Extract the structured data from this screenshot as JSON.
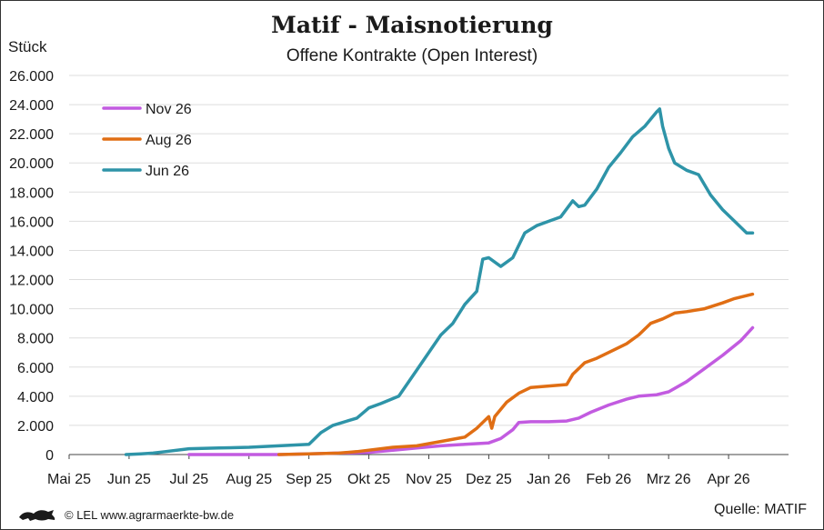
{
  "chart_data": {
    "type": "line",
    "title": "Matif - Maisnotierung",
    "subtitle": "Offene Kontrakte (Open Interest)",
    "ylabel": "Stück",
    "xlabel": "",
    "ylim": [
      0,
      26000
    ],
    "yticks": [
      0,
      2000,
      4000,
      6000,
      8000,
      10000,
      12000,
      14000,
      16000,
      18000,
      20000,
      22000,
      24000,
      26000
    ],
    "ytick_labels": [
      "0",
      "2.000",
      "4.000",
      "6.000",
      "8.000",
      "10.000",
      "12.000",
      "14.000",
      "16.000",
      "18.000",
      "20.000",
      "22.000",
      "24.000",
      "26.000"
    ],
    "xticks": [
      "Mai 25",
      "Jun 25",
      "Jul 25",
      "Aug 25",
      "Sep 25",
      "Okt 25",
      "Nov 25",
      "Dez 25",
      "Jan 26",
      "Feb 26",
      "Mrz 26",
      "Apr 26"
    ],
    "xlim": [
      0,
      12
    ],
    "x_unit": "months since Mai 25",
    "grid": "horizontal",
    "legend_position": "top-left",
    "series": [
      {
        "name": "Nov 26",
        "color": "#c25be0",
        "x": [
          2.0,
          2.5,
          3.0,
          3.5,
          4.0,
          4.5,
          5.0,
          5.4,
          5.8,
          6.2,
          6.6,
          7.0,
          7.2,
          7.4,
          7.5,
          7.7,
          8.0,
          8.3,
          8.5,
          8.7,
          9.0,
          9.3,
          9.5,
          9.8,
          10.0,
          10.3,
          10.6,
          10.9,
          11.2,
          11.4
        ],
        "values": [
          0,
          0,
          0,
          0,
          50,
          100,
          150,
          300,
          450,
          600,
          700,
          800,
          1100,
          1700,
          2200,
          2250,
          2250,
          2300,
          2500,
          2900,
          3400,
          3800,
          4000,
          4100,
          4300,
          5000,
          5900,
          6800,
          7800,
          8700
        ]
      },
      {
        "name": "Aug 26",
        "color": "#e06e14",
        "x": [
          3.5,
          4.0,
          4.5,
          4.8,
          5.0,
          5.4,
          5.8,
          6.2,
          6.6,
          6.8,
          7.0,
          7.05,
          7.1,
          7.3,
          7.5,
          7.7,
          8.0,
          8.3,
          8.4,
          8.6,
          8.8,
          9.0,
          9.3,
          9.5,
          9.7,
          9.9,
          10.1,
          10.3,
          10.6,
          10.9,
          11.1,
          11.4
        ],
        "values": [
          0,
          50,
          100,
          200,
          300,
          500,
          600,
          900,
          1200,
          1800,
          2600,
          1800,
          2600,
          3600,
          4200,
          4600,
          4700,
          4800,
          5500,
          6300,
          6600,
          7000,
          7600,
          8200,
          9000,
          9300,
          9700,
          9800,
          10000,
          10400,
          10700,
          11000
        ]
      },
      {
        "name": "Jun 26",
        "color": "#2e94a8",
        "x": [
          0.95,
          1.2,
          1.4,
          1.6,
          2.0,
          2.5,
          3.0,
          3.5,
          4.0,
          4.2,
          4.4,
          4.8,
          5.0,
          5.2,
          5.5,
          5.8,
          6.0,
          6.2,
          6.4,
          6.6,
          6.8,
          6.9,
          7.0,
          7.2,
          7.4,
          7.6,
          7.8,
          8.0,
          8.2,
          8.4,
          8.5,
          8.6,
          8.8,
          9.0,
          9.2,
          9.4,
          9.6,
          9.8,
          9.85,
          9.9,
          10.0,
          10.1,
          10.3,
          10.5,
          10.7,
          10.9,
          11.1,
          11.3,
          11.4
        ],
        "values": [
          0,
          50,
          100,
          200,
          400,
          450,
          500,
          600,
          700,
          1500,
          2000,
          2500,
          3200,
          3500,
          4000,
          5800,
          7000,
          8200,
          9000,
          10300,
          11200,
          13400,
          13500,
          12900,
          13500,
          15200,
          15700,
          16000,
          16300,
          17400,
          17000,
          17100,
          18200,
          19700,
          20700,
          21800,
          22500,
          23500,
          23700,
          22500,
          21000,
          20000,
          19500,
          19200,
          17800,
          16800,
          16000,
          15200,
          15200
        ]
      }
    ]
  },
  "footer": {
    "credit": "© LEL www.agrarmaerkte-bw.de",
    "source": "Quelle: MATIF"
  }
}
